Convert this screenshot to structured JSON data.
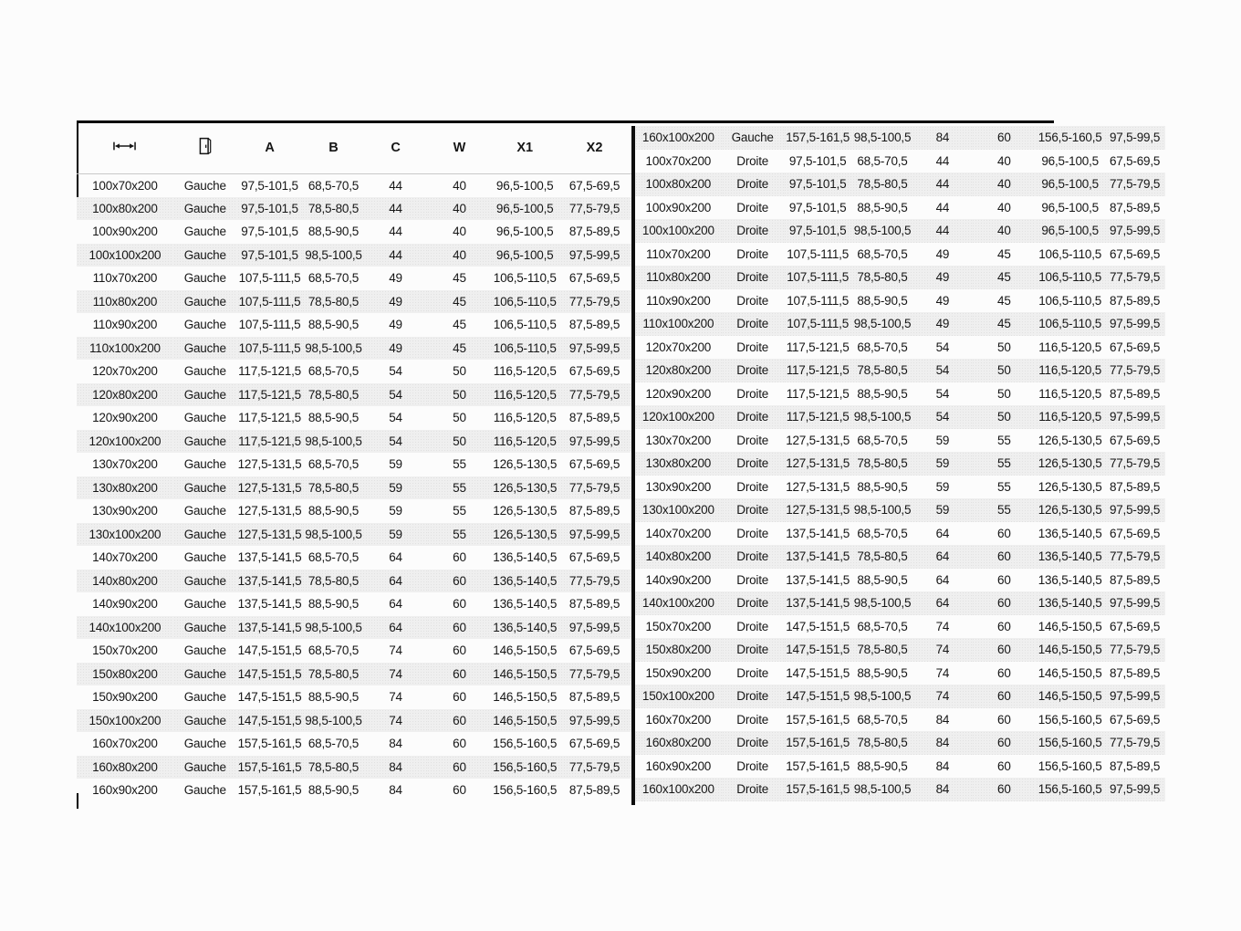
{
  "page": {
    "background": "#fcfcfc"
  },
  "colors": {
    "stripe": "#efefef",
    "stripe-dot": "#e1e1e1",
    "text": "#161616",
    "rule": "#000000",
    "header-sep": "#c9c9c9"
  },
  "header": {
    "col1_icon": "width-arrow-icon",
    "col2_icon": "door-icon",
    "labels": [
      "A",
      "B",
      "C",
      "W",
      "X1",
      "X2"
    ]
  },
  "columns": [
    "size",
    "side",
    "A",
    "B",
    "C",
    "W",
    "X1",
    "X2"
  ],
  "left_table": {
    "rows": [
      [
        "100x70x200",
        "Gauche",
        "97,5-101,5",
        "68,5-70,5",
        "44",
        "40",
        "96,5-100,5",
        "67,5-69,5"
      ],
      [
        "100x80x200",
        "Gauche",
        "97,5-101,5",
        "78,5-80,5",
        "44",
        "40",
        "96,5-100,5",
        "77,5-79,5"
      ],
      [
        "100x90x200",
        "Gauche",
        "97,5-101,5",
        "88,5-90,5",
        "44",
        "40",
        "96,5-100,5",
        "87,5-89,5"
      ],
      [
        "100x100x200",
        "Gauche",
        "97,5-101,5",
        "98,5-100,5",
        "44",
        "40",
        "96,5-100,5",
        "97,5-99,5"
      ],
      [
        "110x70x200",
        "Gauche",
        "107,5-111,5",
        "68,5-70,5",
        "49",
        "45",
        "106,5-110,5",
        "67,5-69,5"
      ],
      [
        "110x80x200",
        "Gauche",
        "107,5-111,5",
        "78,5-80,5",
        "49",
        "45",
        "106,5-110,5",
        "77,5-79,5"
      ],
      [
        "110x90x200",
        "Gauche",
        "107,5-111,5",
        "88,5-90,5",
        "49",
        "45",
        "106,5-110,5",
        "87,5-89,5"
      ],
      [
        "110x100x200",
        "Gauche",
        "107,5-111,5",
        "98,5-100,5",
        "49",
        "45",
        "106,5-110,5",
        "97,5-99,5"
      ],
      [
        "120x70x200",
        "Gauche",
        "117,5-121,5",
        "68,5-70,5",
        "54",
        "50",
        "116,5-120,5",
        "67,5-69,5"
      ],
      [
        "120x80x200",
        "Gauche",
        "117,5-121,5",
        "78,5-80,5",
        "54",
        "50",
        "116,5-120,5",
        "77,5-79,5"
      ],
      [
        "120x90x200",
        "Gauche",
        "117,5-121,5",
        "88,5-90,5",
        "54",
        "50",
        "116,5-120,5",
        "87,5-89,5"
      ],
      [
        "120x100x200",
        "Gauche",
        "117,5-121,5",
        "98,5-100,5",
        "54",
        "50",
        "116,5-120,5",
        "97,5-99,5"
      ],
      [
        "130x70x200",
        "Gauche",
        "127,5-131,5",
        "68,5-70,5",
        "59",
        "55",
        "126,5-130,5",
        "67,5-69,5"
      ],
      [
        "130x80x200",
        "Gauche",
        "127,5-131,5",
        "78,5-80,5",
        "59",
        "55",
        "126,5-130,5",
        "77,5-79,5"
      ],
      [
        "130x90x200",
        "Gauche",
        "127,5-131,5",
        "88,5-90,5",
        "59",
        "55",
        "126,5-130,5",
        "87,5-89,5"
      ],
      [
        "130x100x200",
        "Gauche",
        "127,5-131,5",
        "98,5-100,5",
        "59",
        "55",
        "126,5-130,5",
        "97,5-99,5"
      ],
      [
        "140x70x200",
        "Gauche",
        "137,5-141,5",
        "68,5-70,5",
        "64",
        "60",
        "136,5-140,5",
        "67,5-69,5"
      ],
      [
        "140x80x200",
        "Gauche",
        "137,5-141,5",
        "78,5-80,5",
        "64",
        "60",
        "136,5-140,5",
        "77,5-79,5"
      ],
      [
        "140x90x200",
        "Gauche",
        "137,5-141,5",
        "88,5-90,5",
        "64",
        "60",
        "136,5-140,5",
        "87,5-89,5"
      ],
      [
        "140x100x200",
        "Gauche",
        "137,5-141,5",
        "98,5-100,5",
        "64",
        "60",
        "136,5-140,5",
        "97,5-99,5"
      ],
      [
        "150x70x200",
        "Gauche",
        "147,5-151,5",
        "68,5-70,5",
        "74",
        "60",
        "146,5-150,5",
        "67,5-69,5"
      ],
      [
        "150x80x200",
        "Gauche",
        "147,5-151,5",
        "78,5-80,5",
        "74",
        "60",
        "146,5-150,5",
        "77,5-79,5"
      ],
      [
        "150x90x200",
        "Gauche",
        "147,5-151,5",
        "88,5-90,5",
        "74",
        "60",
        "146,5-150,5",
        "87,5-89,5"
      ],
      [
        "150x100x200",
        "Gauche",
        "147,5-151,5",
        "98,5-100,5",
        "74",
        "60",
        "146,5-150,5",
        "97,5-99,5"
      ],
      [
        "160x70x200",
        "Gauche",
        "157,5-161,5",
        "68,5-70,5",
        "84",
        "60",
        "156,5-160,5",
        "67,5-69,5"
      ],
      [
        "160x80x200",
        "Gauche",
        "157,5-161,5",
        "78,5-80,5",
        "84",
        "60",
        "156,5-160,5",
        "77,5-79,5"
      ],
      [
        "160x90x200",
        "Gauche",
        "157,5-161,5",
        "88,5-90,5",
        "84",
        "60",
        "156,5-160,5",
        "87,5-89,5"
      ]
    ]
  },
  "right_table": {
    "rows": [
      [
        "160x100x200",
        "Gauche",
        "157,5-161,5",
        "98,5-100,5",
        "84",
        "60",
        "156,5-160,5",
        "97,5-99,5"
      ],
      [
        "100x70x200",
        "Droite",
        "97,5-101,5",
        "68,5-70,5",
        "44",
        "40",
        "96,5-100,5",
        "67,5-69,5"
      ],
      [
        "100x80x200",
        "Droite",
        "97,5-101,5",
        "78,5-80,5",
        "44",
        "40",
        "96,5-100,5",
        "77,5-79,5"
      ],
      [
        "100x90x200",
        "Droite",
        "97,5-101,5",
        "88,5-90,5",
        "44",
        "40",
        "96,5-100,5",
        "87,5-89,5"
      ],
      [
        "100x100x200",
        "Droite",
        "97,5-101,5",
        "98,5-100,5",
        "44",
        "40",
        "96,5-100,5",
        "97,5-99,5"
      ],
      [
        "110x70x200",
        "Droite",
        "107,5-111,5",
        "68,5-70,5",
        "49",
        "45",
        "106,5-110,5",
        "67,5-69,5"
      ],
      [
        "110x80x200",
        "Droite",
        "107,5-111,5",
        "78,5-80,5",
        "49",
        "45",
        "106,5-110,5",
        "77,5-79,5"
      ],
      [
        "110x90x200",
        "Droite",
        "107,5-111,5",
        "88,5-90,5",
        "49",
        "45",
        "106,5-110,5",
        "87,5-89,5"
      ],
      [
        "110x100x200",
        "Droite",
        "107,5-111,5",
        "98,5-100,5",
        "49",
        "45",
        "106,5-110,5",
        "97,5-99,5"
      ],
      [
        "120x70x200",
        "Droite",
        "117,5-121,5",
        "68,5-70,5",
        "54",
        "50",
        "116,5-120,5",
        "67,5-69,5"
      ],
      [
        "120x80x200",
        "Droite",
        "117,5-121,5",
        "78,5-80,5",
        "54",
        "50",
        "116,5-120,5",
        "77,5-79,5"
      ],
      [
        "120x90x200",
        "Droite",
        "117,5-121,5",
        "88,5-90,5",
        "54",
        "50",
        "116,5-120,5",
        "87,5-89,5"
      ],
      [
        "120x100x200",
        "Droite",
        "117,5-121,5",
        "98,5-100,5",
        "54",
        "50",
        "116,5-120,5",
        "97,5-99,5"
      ],
      [
        "130x70x200",
        "Droite",
        "127,5-131,5",
        "68,5-70,5",
        "59",
        "55",
        "126,5-130,5",
        "67,5-69,5"
      ],
      [
        "130x80x200",
        "Droite",
        "127,5-131,5",
        "78,5-80,5",
        "59",
        "55",
        "126,5-130,5",
        "77,5-79,5"
      ],
      [
        "130x90x200",
        "Droite",
        "127,5-131,5",
        "88,5-90,5",
        "59",
        "55",
        "126,5-130,5",
        "87,5-89,5"
      ],
      [
        "130x100x200",
        "Droite",
        "127,5-131,5",
        "98,5-100,5",
        "59",
        "55",
        "126,5-130,5",
        "97,5-99,5"
      ],
      [
        "140x70x200",
        "Droite",
        "137,5-141,5",
        "68,5-70,5",
        "64",
        "60",
        "136,5-140,5",
        "67,5-69,5"
      ],
      [
        "140x80x200",
        "Droite",
        "137,5-141,5",
        "78,5-80,5",
        "64",
        "60",
        "136,5-140,5",
        "77,5-79,5"
      ],
      [
        "140x90x200",
        "Droite",
        "137,5-141,5",
        "88,5-90,5",
        "64",
        "60",
        "136,5-140,5",
        "87,5-89,5"
      ],
      [
        "140x100x200",
        "Droite",
        "137,5-141,5",
        "98,5-100,5",
        "64",
        "60",
        "136,5-140,5",
        "97,5-99,5"
      ],
      [
        "150x70x200",
        "Droite",
        "147,5-151,5",
        "68,5-70,5",
        "74",
        "60",
        "146,5-150,5",
        "67,5-69,5"
      ],
      [
        "150x80x200",
        "Droite",
        "147,5-151,5",
        "78,5-80,5",
        "74",
        "60",
        "146,5-150,5",
        "77,5-79,5"
      ],
      [
        "150x90x200",
        "Droite",
        "147,5-151,5",
        "88,5-90,5",
        "74",
        "60",
        "146,5-150,5",
        "87,5-89,5"
      ],
      [
        "150x100x200",
        "Droite",
        "147,5-151,5",
        "98,5-100,5",
        "74",
        "60",
        "146,5-150,5",
        "97,5-99,5"
      ],
      [
        "160x70x200",
        "Droite",
        "157,5-161,5",
        "68,5-70,5",
        "84",
        "60",
        "156,5-160,5",
        "67,5-69,5"
      ],
      [
        "160x80x200",
        "Droite",
        "157,5-161,5",
        "78,5-80,5",
        "84",
        "60",
        "156,5-160,5",
        "77,5-79,5"
      ],
      [
        "160x90x200",
        "Droite",
        "157,5-161,5",
        "88,5-90,5",
        "84",
        "60",
        "156,5-160,5",
        "87,5-89,5"
      ],
      [
        "160x100x200",
        "Droite",
        "157,5-161,5",
        "98,5-100,5",
        "84",
        "60",
        "156,5-160,5",
        "97,5-99,5"
      ]
    ]
  }
}
